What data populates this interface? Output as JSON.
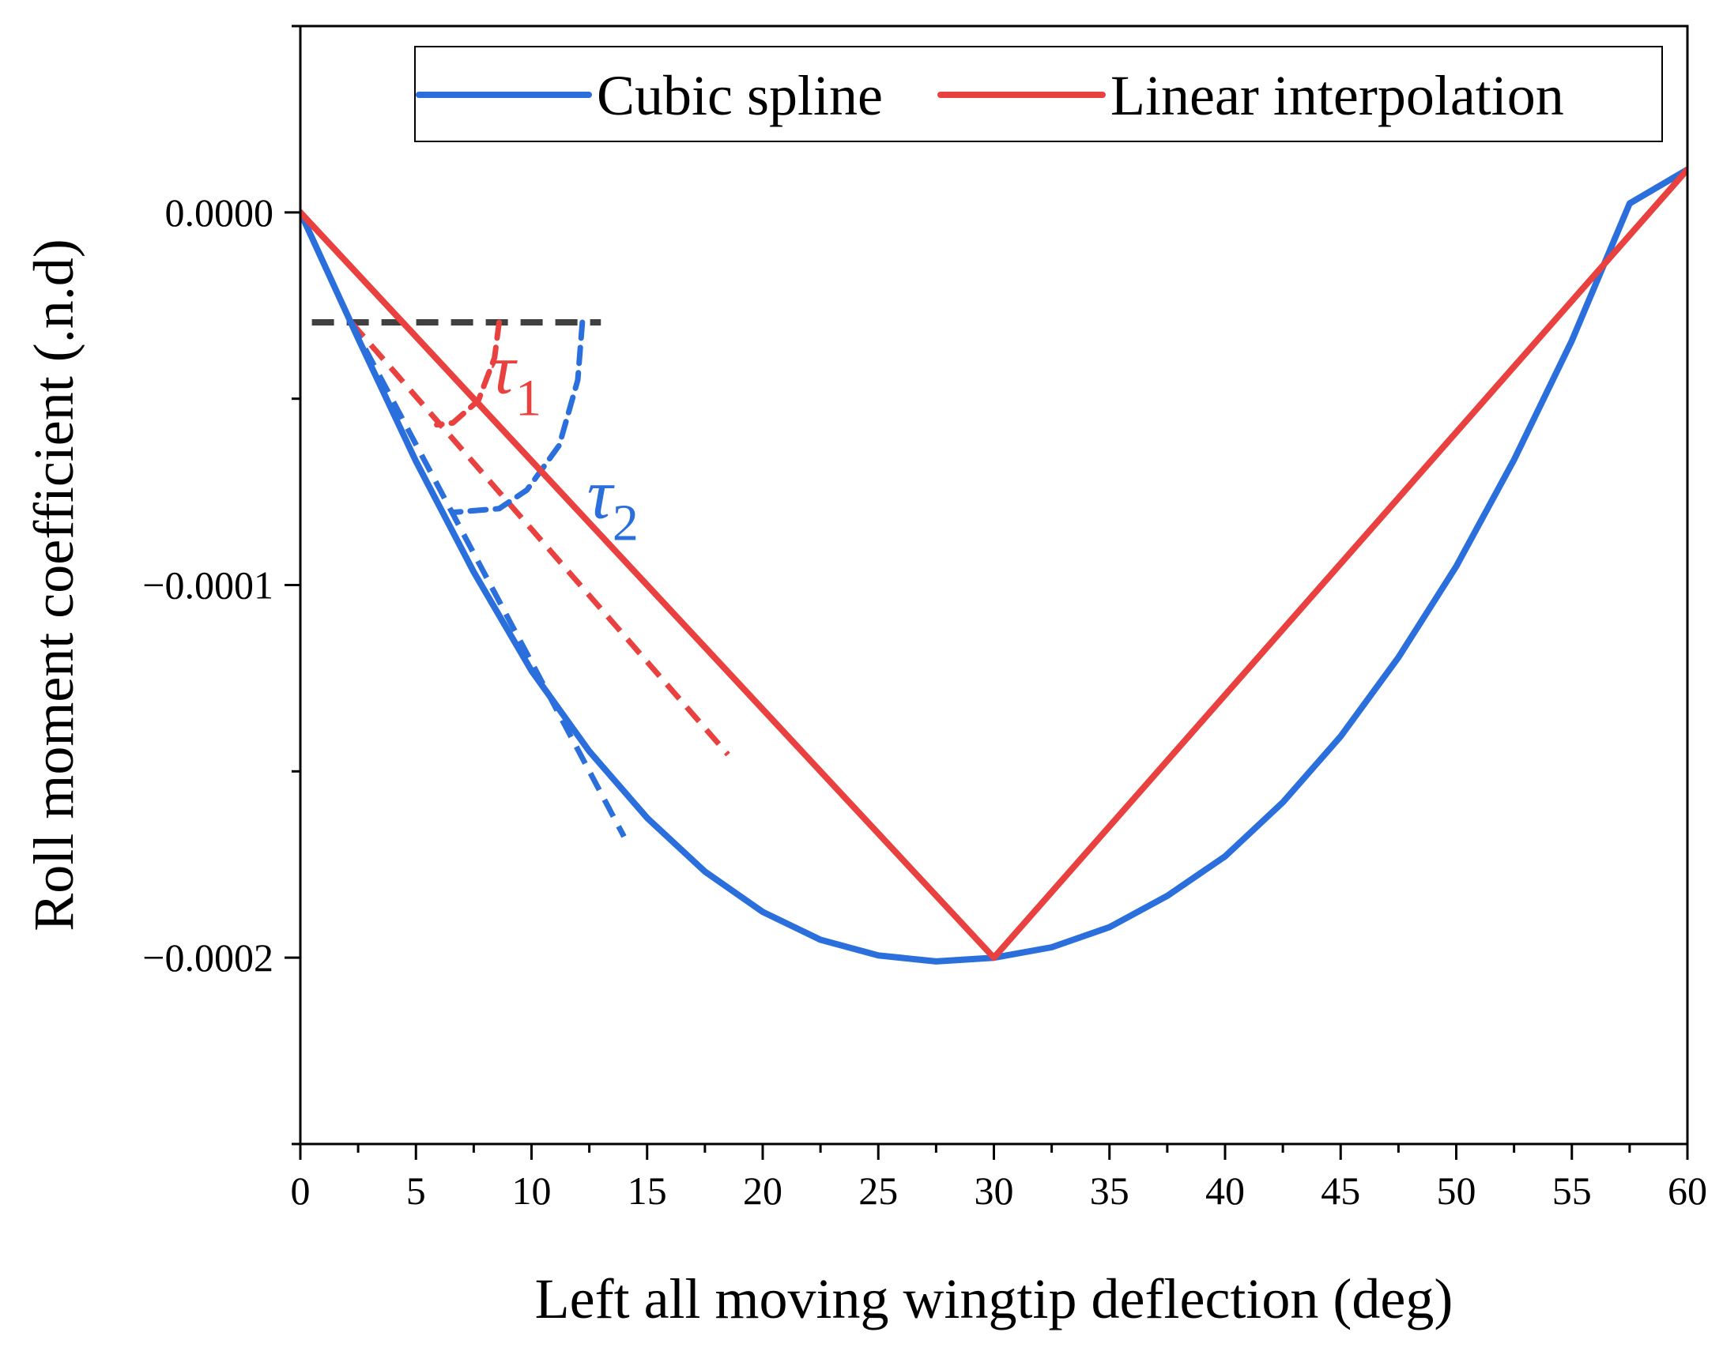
{
  "chart_data": {
    "type": "line",
    "xlabel": "Left all moving wingtip deflection (deg)",
    "ylabel": "Roll moment coefficient (.n.d)",
    "xlim": [
      0,
      60
    ],
    "ylim": [
      -0.00025,
      5e-05
    ],
    "xticks": [
      0,
      5,
      10,
      15,
      20,
      25,
      30,
      35,
      40,
      45,
      50,
      55,
      60
    ],
    "xtick_labels": [
      "0",
      "5",
      "10",
      "15",
      "20",
      "25",
      "30",
      "35",
      "40",
      "45",
      "50",
      "55",
      "60"
    ],
    "yticks": [
      0,
      -0.0001,
      -0.0002
    ],
    "ytick_labels": [
      "0.0000",
      "−0.0001",
      "−0.0002"
    ],
    "grid": false,
    "legend": {
      "position": "top-right",
      "entries": [
        {
          "label": "Cubic spline",
          "color": "#2a6fdb"
        },
        {
          "label": "Linear interpolation",
          "color": "#e8413f"
        }
      ]
    },
    "series": [
      {
        "name": "Cubic spline",
        "color": "#2a6fdb",
        "style": "solid",
        "x": [
          0,
          2.5,
          5,
          7.5,
          10,
          12.5,
          15,
          17.5,
          20,
          22.5,
          25,
          27.5,
          30,
          32.5,
          35,
          37.5,
          40,
          42.5,
          45,
          47.5,
          50,
          52.5,
          55,
          57.5,
          60
        ],
        "y": [
          0,
          -3.38e-05,
          -6.68e-05,
          -9.65e-05,
          -0.000123,
          -0.0001446,
          -0.0001625,
          -0.0001769,
          -0.0001877,
          -0.0001952,
          -0.0001994,
          -0.000201,
          -0.0002,
          -0.0001972,
          -0.0001918,
          -0.0001834,
          -0.0001728,
          -0.0001583,
          -0.0001406,
          -0.0001194,
          -9.5e-05,
          -6.64e-05,
          -3.44e-05,
          2.4e-06,
          1.15e-05
        ]
      },
      {
        "name": "Linear interpolation",
        "color": "#e8413f",
        "style": "solid",
        "x": [
          0,
          30,
          60
        ],
        "y": [
          0,
          -0.0002,
          1.15e-05
        ]
      }
    ],
    "annotations": {
      "reference_line": {
        "x": [
          0.5,
          13
        ],
        "y": [
          -2.95e-05,
          -2.95e-05
        ],
        "color": "#404040"
      },
      "tangent_lines": [
        {
          "x": [
            2.2,
            18.5
          ],
          "y": [
            -2.95e-05,
            -0.0001455
          ],
          "color": "#e8413f"
        },
        {
          "x": [
            2.2,
            14
          ],
          "y": [
            -2.95e-05,
            -0.0001675
          ],
          "color": "#2a6fdb"
        }
      ],
      "angle_labels": [
        {
          "symbol": "τ",
          "subscript": "1",
          "x": 8.2,
          "y": -4.85e-05,
          "color": "#e8413f"
        },
        {
          "symbol": "τ",
          "subscript": "2",
          "x": 12.4,
          "y": -8.2e-05,
          "color": "#2a6fdb"
        }
      ],
      "angle_arcs": [
        {
          "points": [
            [
              8.6,
              -2.95e-05
            ],
            [
              8.4,
              -3.9e-05
            ],
            [
              7.7,
              -5.05e-05
            ],
            [
              6.6,
              -5.65e-05
            ],
            [
              5.9,
              -5.7e-05
            ]
          ],
          "color": "#e8413f"
        },
        {
          "points": [
            [
              12.2,
              -2.95e-05
            ],
            [
              12.0,
              -4.5e-05
            ],
            [
              11.2,
              -6.25e-05
            ],
            [
              9.8,
              -7.45e-05
            ],
            [
              8.6,
              -7.95e-05
            ],
            [
              6.6,
              -8.05e-05
            ]
          ],
          "color": "#2a6fdb"
        }
      ]
    }
  }
}
